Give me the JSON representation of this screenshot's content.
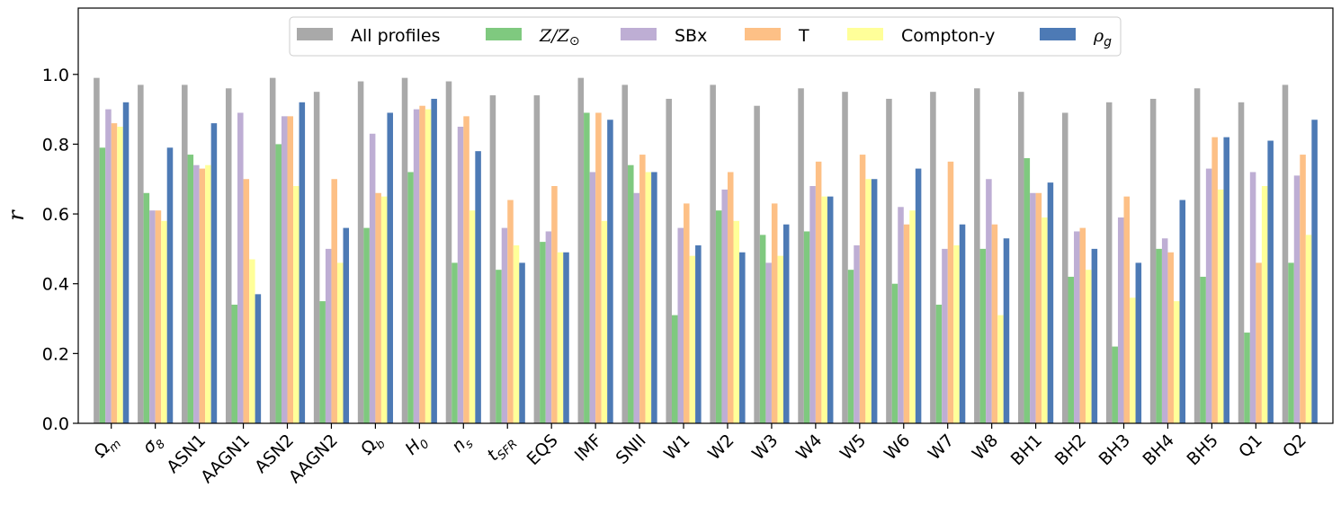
{
  "chart_data": {
    "type": "bar",
    "title": "",
    "xlabel": "",
    "ylabel": "r",
    "ylim": [
      0,
      1.19
    ],
    "yticks": [
      "0.0",
      "0.2",
      "0.4",
      "0.6",
      "0.8",
      "1.0"
    ],
    "legend_position": "top-center",
    "categories": [
      "Ωm",
      "σ8",
      "ASN1",
      "AAGN1",
      "ASN2",
      "AAGN2",
      "Ωb",
      "H0",
      "ns",
      "tSFR",
      "EQS",
      "IMF",
      "SNII",
      "W1",
      "W2",
      "W3",
      "W4",
      "W5",
      "W6",
      "W7",
      "W8",
      "BH1",
      "BH2",
      "BH3",
      "BH4",
      "BH5",
      "Q1",
      "Q2"
    ],
    "category_labels": [
      {
        "main": "Ω",
        "sub": "m",
        "italic": false
      },
      {
        "main": "σ",
        "sub": "8",
        "italic": true
      },
      {
        "main": "ASN1",
        "sub": "",
        "italic": false
      },
      {
        "main": "AAGN1",
        "sub": "",
        "italic": false
      },
      {
        "main": "ASN2",
        "sub": "",
        "italic": false
      },
      {
        "main": "AAGN2",
        "sub": "",
        "italic": false
      },
      {
        "main": "Ω",
        "sub": "b",
        "italic": false
      },
      {
        "main": "H",
        "sub": "0",
        "italic": true
      },
      {
        "main": "n",
        "sub": "s",
        "italic": true
      },
      {
        "main": "t",
        "sub": "SFR",
        "italic": true
      },
      {
        "main": "EQS",
        "sub": "",
        "italic": false
      },
      {
        "main": "IMF",
        "sub": "",
        "italic": false
      },
      {
        "main": "SNII",
        "sub": "",
        "italic": false
      },
      {
        "main": "W1",
        "sub": "",
        "italic": false
      },
      {
        "main": "W2",
        "sub": "",
        "italic": false
      },
      {
        "main": "W3",
        "sub": "",
        "italic": false
      },
      {
        "main": "W4",
        "sub": "",
        "italic": false
      },
      {
        "main": "W5",
        "sub": "",
        "italic": false
      },
      {
        "main": "W6",
        "sub": "",
        "italic": false
      },
      {
        "main": "W7",
        "sub": "",
        "italic": false
      },
      {
        "main": "W8",
        "sub": "",
        "italic": false
      },
      {
        "main": "BH1",
        "sub": "",
        "italic": false
      },
      {
        "main": "BH2",
        "sub": "",
        "italic": false
      },
      {
        "main": "BH3",
        "sub": "",
        "italic": false
      },
      {
        "main": "BH4",
        "sub": "",
        "italic": false
      },
      {
        "main": "BH5",
        "sub": "",
        "italic": false
      },
      {
        "main": "Q1",
        "sub": "",
        "italic": false
      },
      {
        "main": "Q2",
        "sub": "",
        "italic": false
      }
    ],
    "series": [
      {
        "name": "All profiles",
        "color": "#a9a9a9",
        "values": [
          0.99,
          0.97,
          0.97,
          0.96,
          0.99,
          0.95,
          0.98,
          0.99,
          0.98,
          0.94,
          0.94,
          0.99,
          0.97,
          0.93,
          0.97,
          0.91,
          0.96,
          0.95,
          0.93,
          0.95,
          0.96,
          0.95,
          0.89,
          0.92,
          0.93,
          0.96,
          0.92,
          0.97
        ]
      },
      {
        "name": "Z/Z⊙",
        "color": "#7fc97f",
        "values": [
          0.79,
          0.66,
          0.77,
          0.34,
          0.8,
          0.35,
          0.56,
          0.72,
          0.46,
          0.44,
          0.52,
          0.89,
          0.74,
          0.31,
          0.61,
          0.54,
          0.55,
          0.44,
          0.4,
          0.34,
          0.5,
          0.76,
          0.42,
          0.22,
          0.5,
          0.42,
          0.26,
          0.46
        ]
      },
      {
        "name": "SBx",
        "color": "#beaed4",
        "values": [
          0.9,
          0.61,
          0.74,
          0.89,
          0.88,
          0.5,
          0.83,
          0.9,
          0.85,
          0.56,
          0.55,
          0.72,
          0.66,
          0.56,
          0.67,
          0.46,
          0.68,
          0.51,
          0.62,
          0.5,
          0.7,
          0.66,
          0.55,
          0.59,
          0.53,
          0.73,
          0.72,
          0.71
        ]
      },
      {
        "name": "T",
        "color": "#fdc086",
        "values": [
          0.86,
          0.61,
          0.73,
          0.7,
          0.88,
          0.7,
          0.66,
          0.91,
          0.88,
          0.64,
          0.68,
          0.89,
          0.77,
          0.63,
          0.72,
          0.63,
          0.75,
          0.77,
          0.57,
          0.75,
          0.57,
          0.66,
          0.56,
          0.65,
          0.49,
          0.82,
          0.46,
          0.77
        ]
      },
      {
        "name": "Compton-y",
        "color": "#ffff99",
        "values": [
          0.85,
          0.58,
          0.74,
          0.47,
          0.68,
          0.46,
          0.65,
          0.9,
          0.61,
          0.51,
          0.49,
          0.58,
          0.72,
          0.48,
          0.58,
          0.48,
          0.65,
          0.7,
          0.61,
          0.51,
          0.31,
          0.59,
          0.44,
          0.36,
          0.35,
          0.67,
          0.68,
          0.54
        ]
      },
      {
        "name": "ρg",
        "color": "#4d7ab5",
        "values": [
          0.92,
          0.79,
          0.86,
          0.37,
          0.92,
          0.56,
          0.89,
          0.93,
          0.78,
          0.46,
          0.49,
          0.87,
          0.72,
          0.51,
          0.49,
          0.57,
          0.65,
          0.7,
          0.73,
          0.57,
          0.53,
          0.69,
          0.5,
          0.46,
          0.64,
          0.82,
          0.81,
          0.87
        ]
      }
    ],
    "legend_labels": [
      {
        "main": "All profiles",
        "math": false
      },
      {
        "main": "Z/Z",
        "suffix": "⊙",
        "math": true
      },
      {
        "main": "SBx",
        "math": false
      },
      {
        "main": "T",
        "math": false
      },
      {
        "main": "Compton-y",
        "math": false
      },
      {
        "main": "ρ",
        "sub": "g",
        "math": true
      }
    ]
  }
}
